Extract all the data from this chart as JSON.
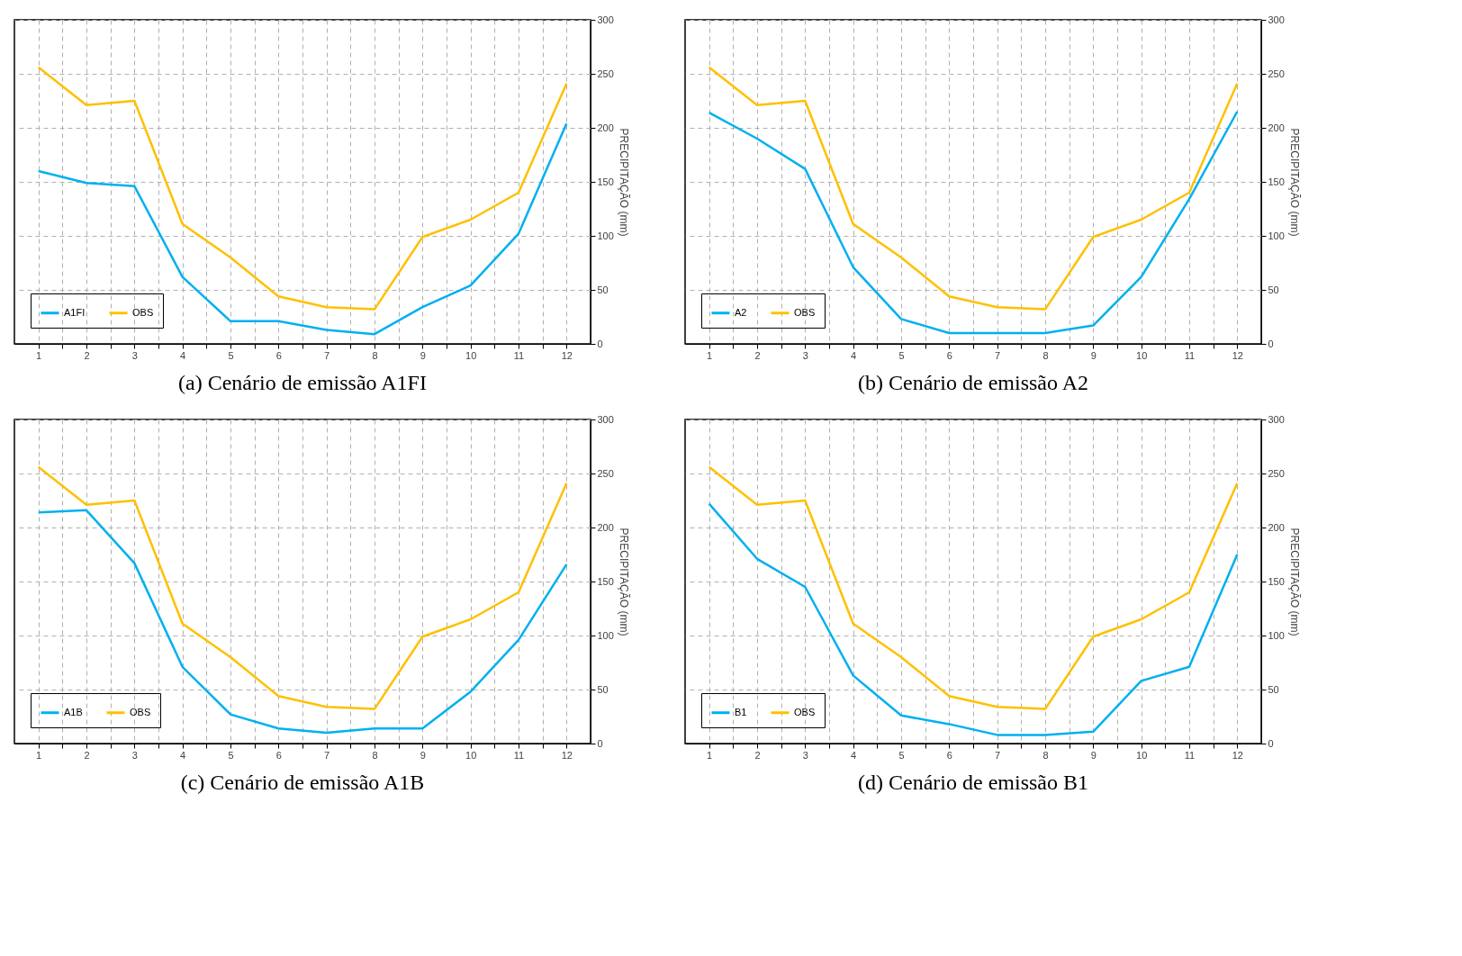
{
  "chart_data": [
    {
      "type": "line",
      "x": [
        1,
        2,
        3,
        4,
        5,
        6,
        7,
        8,
        9,
        10,
        11,
        12
      ],
      "xlim": [
        0.5,
        12.5
      ],
      "xticks": [
        1,
        {
          "value": 1.5,
          "label": null
        },
        2,
        {
          "value": 2.5,
          "label": null
        },
        3,
        {
          "value": 3.5,
          "label": null
        },
        4,
        {
          "value": 4.5,
          "label": null
        },
        5,
        {
          "value": 5.5,
          "label": null
        },
        6,
        {
          "value": 6.5,
          "label": null
        },
        7,
        {
          "value": 7.5,
          "label": null
        },
        8,
        {
          "value": 8.5,
          "label": null
        },
        9,
        {
          "value": 9.5,
          "label": null
        },
        10,
        {
          "value": 10.5,
          "label": null
        },
        11,
        {
          "value": 11.5,
          "label": null
        },
        12
      ],
      "ylim": [
        0,
        300
      ],
      "yticks": [
        0,
        50,
        100,
        150,
        200,
        250,
        300
      ],
      "ylabel": "PRECIPITAÇÃO (mm)",
      "grid": true,
      "legend": "bottom left",
      "marker": "none",
      "line_style": "solid",
      "annotations": [
        "(a) Cenário de emissão A1FI"
      ],
      "series": [
        {
          "name": "A1FI",
          "color": "#00b0f0",
          "values": [
            160,
            149,
            146,
            62,
            21,
            21,
            13,
            9,
            34,
            54,
            102,
            204
          ]
        },
        {
          "name": "OBS",
          "color": "#ffc000",
          "values": [
            256,
            221,
            225,
            111,
            80,
            44,
            34,
            32,
            99,
            115,
            140,
            241
          ]
        }
      ]
    },
    {
      "type": "line",
      "x": [
        1,
        2,
        3,
        4,
        5,
        6,
        7,
        8,
        9,
        10,
        11,
        12
      ],
      "xlim": [
        0.5,
        12.5
      ],
      "xticks": [
        1,
        {
          "value": 1.5,
          "label": null
        },
        2,
        {
          "value": 2.5,
          "label": null
        },
        3,
        {
          "value": 3.5,
          "label": null
        },
        4,
        {
          "value": 4.5,
          "label": null
        },
        5,
        {
          "value": 5.5,
          "label": null
        },
        6,
        {
          "value": 6.5,
          "label": null
        },
        7,
        {
          "value": 7.5,
          "label": null
        },
        8,
        {
          "value": 8.5,
          "label": null
        },
        9,
        {
          "value": 9.5,
          "label": null
        },
        10,
        {
          "value": 10.5,
          "label": null
        },
        11,
        {
          "value": 11.5,
          "label": null
        },
        12
      ],
      "ylim": [
        0,
        300
      ],
      "yticks": [
        0,
        50,
        100,
        150,
        200,
        250,
        300
      ],
      "ylabel": "PRECIPITAÇÃO (mm)",
      "grid": true,
      "legend": "bottom left",
      "marker": "none",
      "line_style": "solid",
      "annotations": [
        "(b) Cenário de emissão A2"
      ],
      "series": [
        {
          "name": "A2",
          "color": "#00b0f0",
          "values": [
            214,
            190,
            162,
            71,
            23,
            10,
            10,
            10,
            17,
            62,
            134,
            215
          ]
        },
        {
          "name": "OBS",
          "color": "#ffc000",
          "values": [
            256,
            221,
            225,
            111,
            80,
            44,
            34,
            32,
            99,
            115,
            140,
            241
          ]
        }
      ]
    },
    {
      "type": "line",
      "x": [
        1,
        2,
        3,
        4,
        5,
        6,
        7,
        8,
        9,
        10,
        11,
        12
      ],
      "xlim": [
        0.5,
        12.5
      ],
      "xticks": [
        1,
        {
          "value": 1.5,
          "label": null
        },
        2,
        {
          "value": 2.5,
          "label": null
        },
        3,
        {
          "value": 3.5,
          "label": null
        },
        4,
        {
          "value": 4.5,
          "label": null
        },
        5,
        {
          "value": 5.5,
          "label": null
        },
        6,
        {
          "value": 6.5,
          "label": null
        },
        7,
        {
          "value": 7.5,
          "label": null
        },
        8,
        {
          "value": 8.5,
          "label": null
        },
        9,
        {
          "value": 9.5,
          "label": null
        },
        10,
        {
          "value": 10.5,
          "label": null
        },
        11,
        {
          "value": 11.5,
          "label": null
        },
        12
      ],
      "ylim": [
        0,
        300
      ],
      "yticks": [
        0,
        50,
        100,
        150,
        200,
        250,
        300
      ],
      "ylabel": "PRECIPITAÇÃO (mm)",
      "grid": true,
      "legend": "bottom left",
      "marker": "none",
      "line_style": "solid",
      "annotations": [
        "(c) Cenário de emissão A1B"
      ],
      "series": [
        {
          "name": "A1B",
          "color": "#00b0f0",
          "values": [
            214,
            216,
            167,
            71,
            27,
            14,
            10,
            14,
            14,
            48,
            96,
            166
          ]
        },
        {
          "name": "OBS",
          "color": "#ffc000",
          "values": [
            256,
            221,
            225,
            111,
            80,
            44,
            34,
            32,
            99,
            115,
            140,
            241
          ]
        }
      ]
    },
    {
      "type": "line",
      "x": [
        1,
        2,
        3,
        4,
        5,
        6,
        7,
        8,
        9,
        10,
        11,
        12
      ],
      "xlim": [
        0.5,
        12.5
      ],
      "xticks": [
        1,
        {
          "value": 1.5,
          "label": null
        },
        2,
        {
          "value": 2.5,
          "label": null
        },
        3,
        {
          "value": 3.5,
          "label": null
        },
        4,
        {
          "value": 4.5,
          "label": null
        },
        5,
        {
          "value": 5.5,
          "label": null
        },
        6,
        {
          "value": 6.5,
          "label": null
        },
        7,
        {
          "value": 7.5,
          "label": null
        },
        8,
        {
          "value": 8.5,
          "label": null
        },
        9,
        {
          "value": 9.5,
          "label": null
        },
        10,
        {
          "value": 10.5,
          "label": null
        },
        11,
        {
          "value": 11.5,
          "label": null
        },
        12
      ],
      "ylim": [
        0,
        300
      ],
      "yticks": [
        0,
        50,
        100,
        150,
        200,
        250,
        300
      ],
      "ylabel": "PRECIPITAÇÃO (mm)",
      "grid": true,
      "legend": "bottom left",
      "marker": "none",
      "line_style": "solid",
      "annotations": [
        "(d) Cenário de emissão B1"
      ],
      "series": [
        {
          "name": "B1",
          "color": "#00b0f0",
          "values": [
            222,
            171,
            145,
            63,
            26,
            18,
            8,
            8,
            11,
            58,
            71,
            175
          ]
        },
        {
          "name": "OBS",
          "color": "#ffc000",
          "values": [
            256,
            221,
            225,
            111,
            80,
            44,
            34,
            32,
            99,
            115,
            140,
            241
          ]
        }
      ]
    }
  ]
}
